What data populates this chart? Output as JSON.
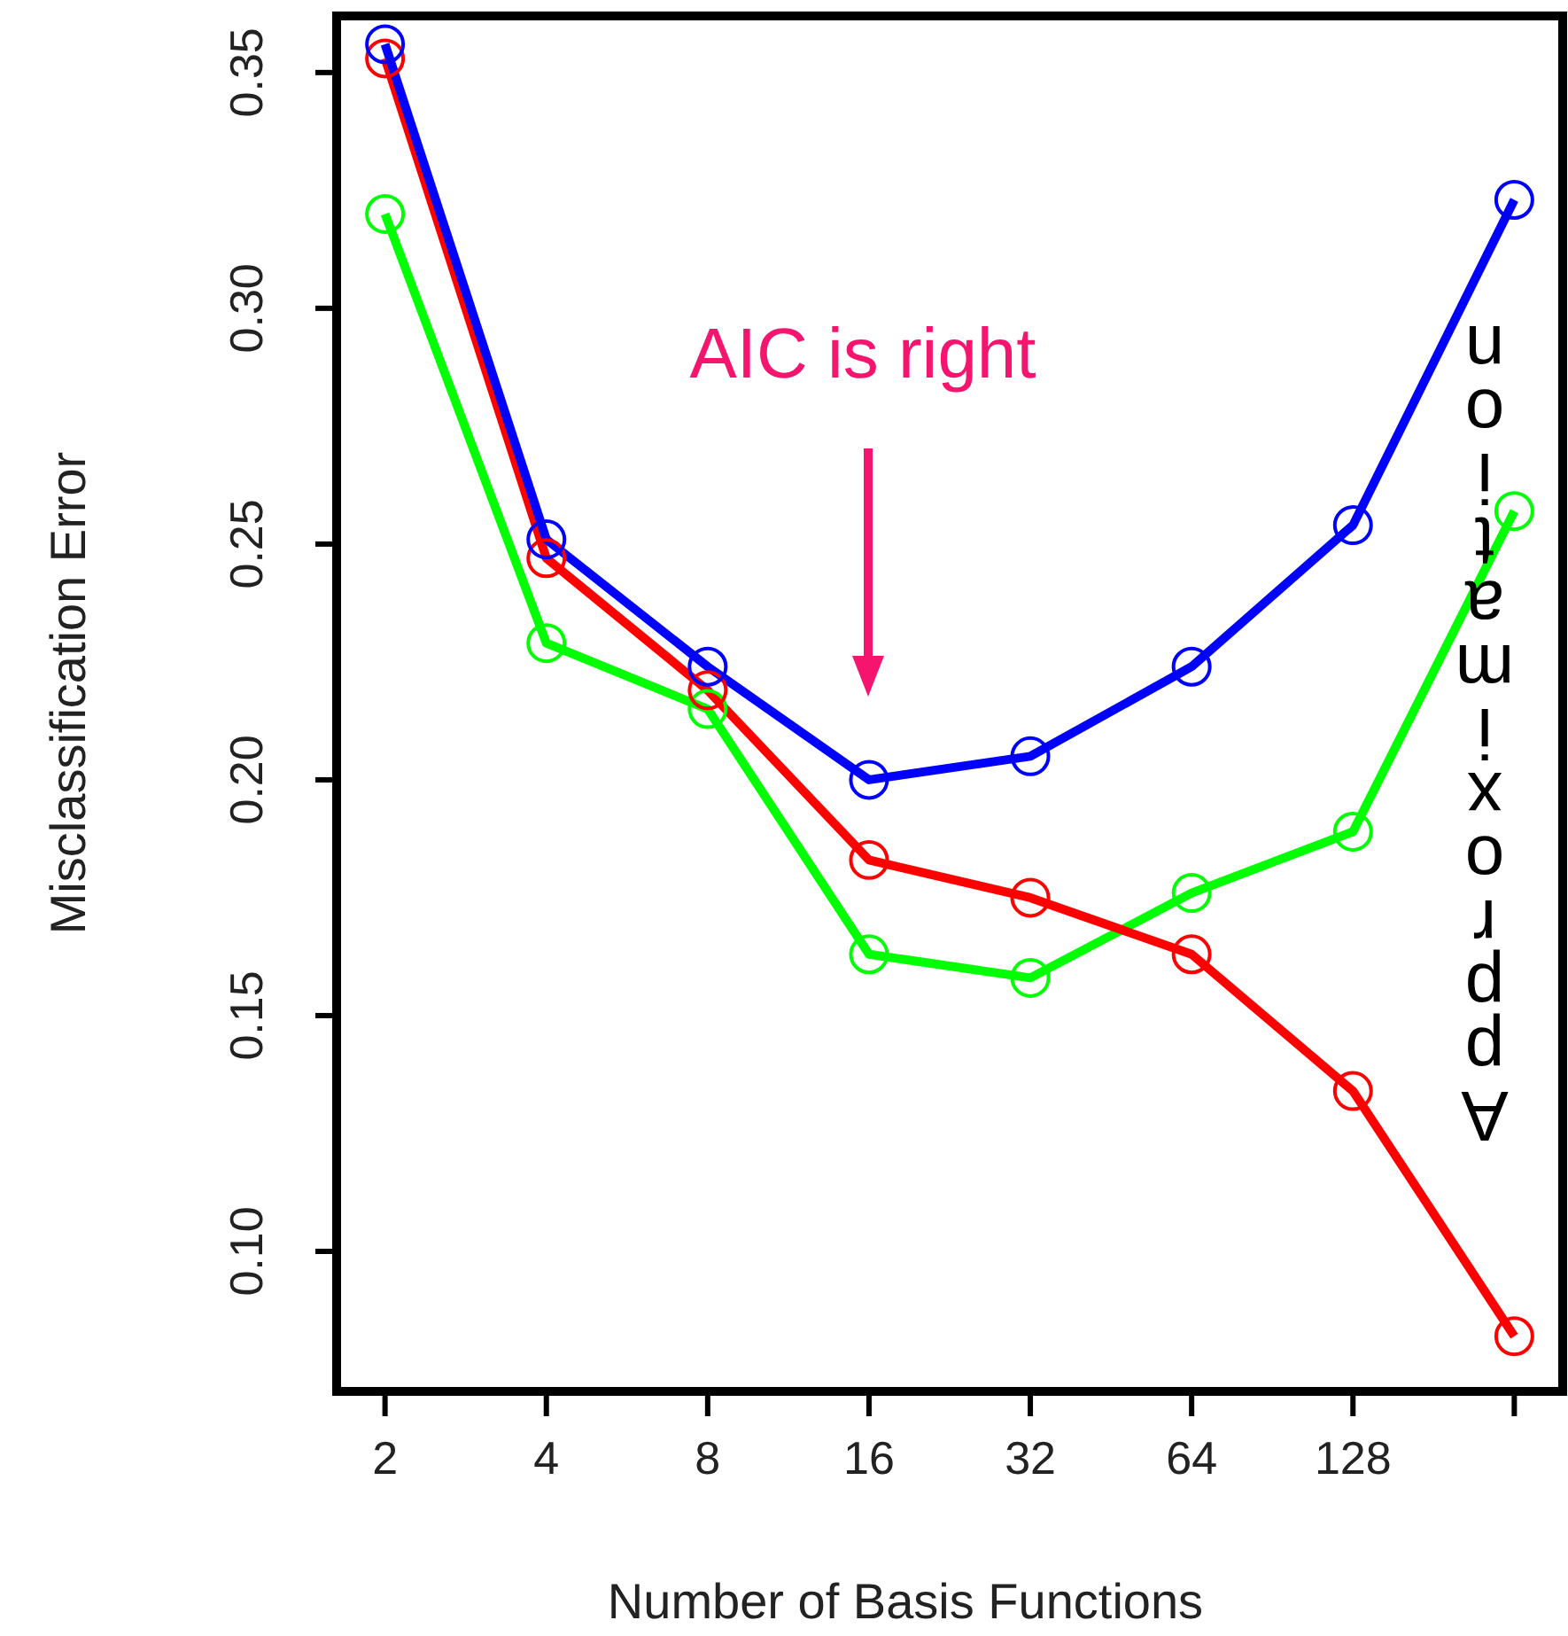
{
  "chart_data": {
    "type": "line",
    "xlabel": "Number of Basis Functions",
    "ylabel": "Misclassification Error",
    "categories": [
      "2",
      "4",
      "8",
      "16",
      "32",
      "64",
      "128",
      null
    ],
    "series": [
      {
        "color": "#0000ff",
        "values": [
          0.356,
          0.251,
          0.224,
          0.2,
          0.205,
          0.224,
          0.254,
          0.323
        ]
      },
      {
        "color": "#ff0000",
        "values": [
          0.353,
          0.247,
          0.219,
          0.183,
          0.175,
          0.163,
          0.134,
          0.082
        ]
      },
      {
        "color": "#00ff00",
        "values": [
          0.32,
          0.229,
          0.215,
          0.163,
          0.158,
          0.176,
          0.189,
          0.257
        ]
      }
    ],
    "ylim": [
      0.0703,
      0.362
    ],
    "yticks": [
      {
        "value": 0.35,
        "label": "0.35"
      },
      {
        "value": 0.3,
        "label": "0.30"
      },
      {
        "value": 0.25,
        "label": "0.25"
      },
      {
        "value": 0.2,
        "label": "0.20"
      },
      {
        "value": 0.15,
        "label": "0.15"
      },
      {
        "value": 0.1,
        "label": "0.10"
      }
    ],
    "marker": "circle",
    "line_style": "solid",
    "grid": false,
    "annotations": [
      "AIC is right",
      "Approximation"
    ]
  }
}
